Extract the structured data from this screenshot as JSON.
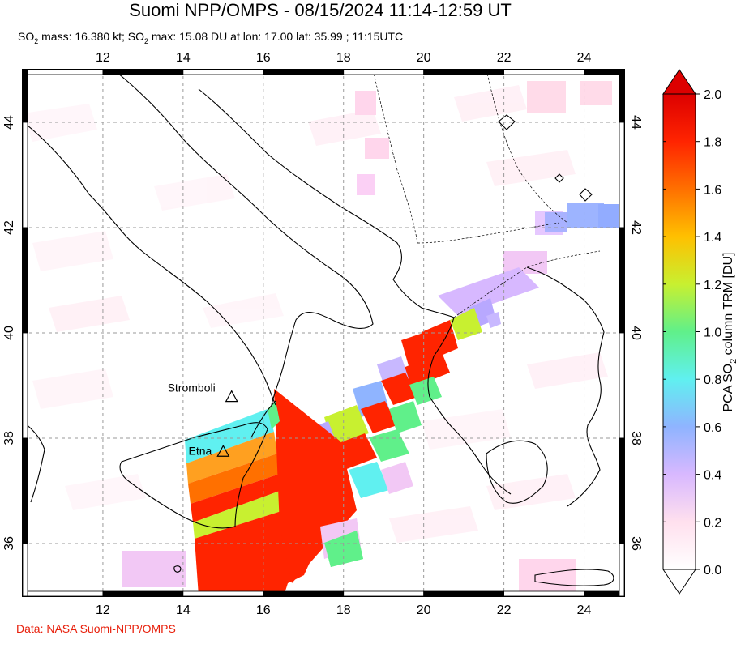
{
  "header": {
    "title": "Suomi NPP/OMPS - 08/15/2024 11:14-12:59 UT",
    "subtitle_pre": "SO",
    "subtitle_mid1": " mass: 16.380 kt; SO",
    "subtitle_mid2": " max: 15.08 DU at lon: 17.00 lat: 35.99 ; 11:15UTC",
    "subscript": "2"
  },
  "credit": "Data: NASA Suomi-NPP/OMPS",
  "map": {
    "lon_range": [
      10,
      25
    ],
    "lat_range": [
      35,
      45
    ],
    "lon_ticks": [
      "12",
      "14",
      "16",
      "18",
      "20",
      "22",
      "24"
    ],
    "lat_ticks": [
      "44",
      "42",
      "40",
      "38",
      "36"
    ],
    "volcanoes": [
      {
        "name": "Stromboli",
        "lon": 15.21,
        "lat": 38.79
      },
      {
        "name": "Etna",
        "lon": 15.0,
        "lat": 37.75
      }
    ]
  },
  "colorbar": {
    "label_pre": "PCA SO",
    "label_sub": "2",
    "label_post": " column TRM [DU]",
    "ticks": [
      "2.0",
      "1.8",
      "1.6",
      "1.4",
      "1.2",
      "1.0",
      "0.8",
      "0.6",
      "0.4",
      "0.2",
      "0.0"
    ],
    "range": [
      0.0,
      2.0
    ],
    "colors": [
      "#ffffff",
      "#ffe0ee",
      "#d8b8ff",
      "#8fb4ff",
      "#60f0f0",
      "#60f08a",
      "#c8f030",
      "#ffc000",
      "#ff7000",
      "#ff2400",
      "#dd0000"
    ]
  }
}
